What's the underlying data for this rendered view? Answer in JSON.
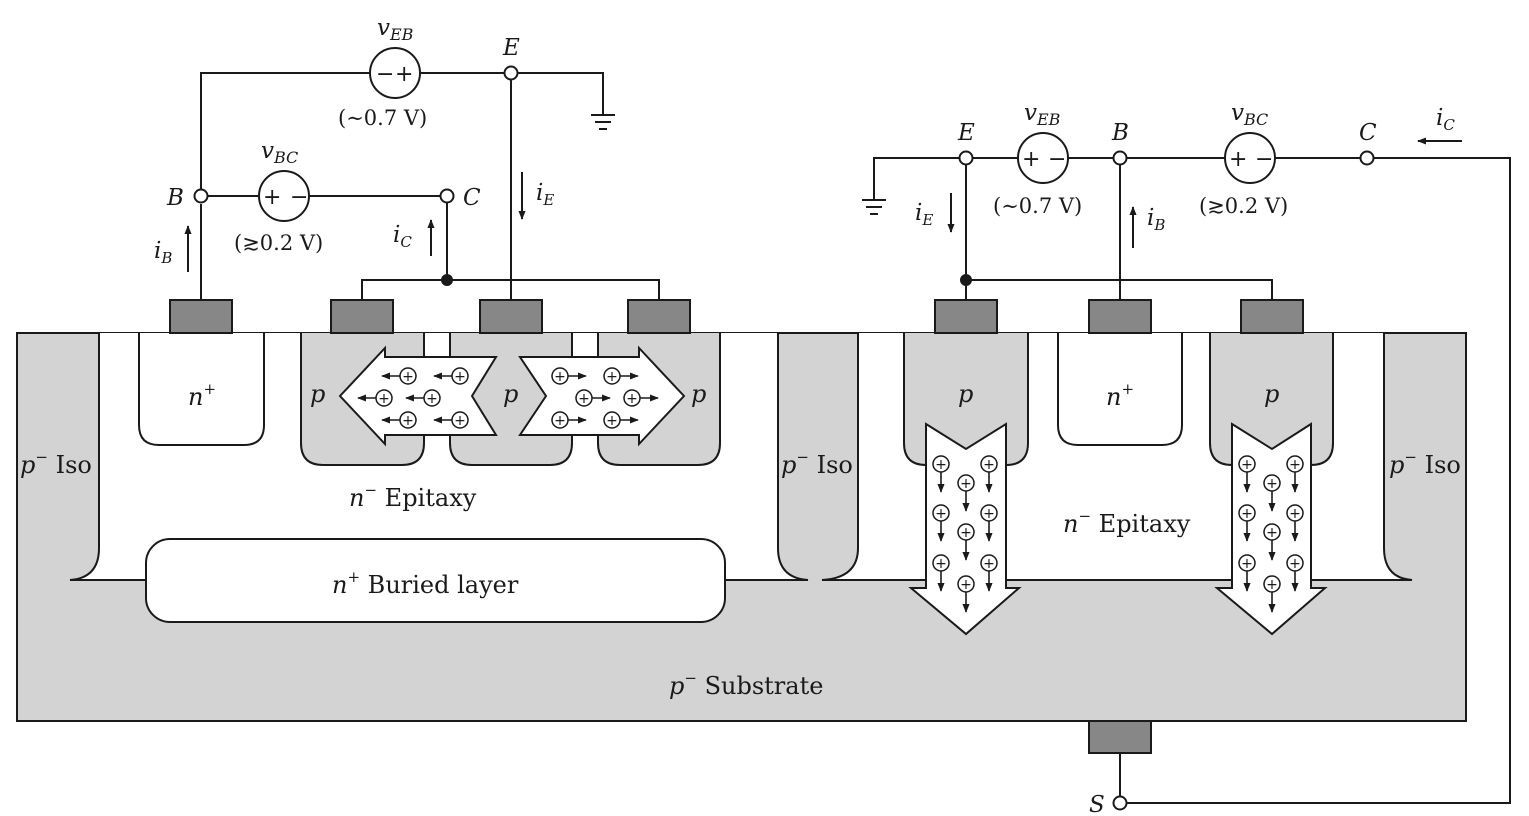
{
  "left_circuit": {
    "source_eb": {
      "name": "v",
      "sub": "EB",
      "pos": "+",
      "neg": "−",
      "value": "(∼0.7 V)"
    },
    "source_bc": {
      "name": "v",
      "sub": "BC",
      "pos": "+",
      "neg": "−",
      "value": "(≳0.2 V)"
    },
    "terminal_e": "E",
    "terminal_b": "B",
    "terminal_c": "C",
    "current_e": {
      "name": "i",
      "sub": "E"
    },
    "current_b": {
      "name": "i",
      "sub": "B"
    },
    "current_c": {
      "name": "i",
      "sub": "C"
    }
  },
  "right_circuit": {
    "source_eb": {
      "name": "v",
      "sub": "EB",
      "pos": "+",
      "neg": "−",
      "value": "(∼0.7 V)"
    },
    "source_bc": {
      "name": "v",
      "sub": "BC",
      "pos": "+",
      "neg": "−",
      "value": "(≳0.2 V)"
    },
    "terminal_e": "E",
    "terminal_b": "B",
    "terminal_c": "C",
    "terminal_s": "S",
    "current_e": {
      "name": "i",
      "sub": "E"
    },
    "current_b": {
      "name": "i",
      "sub": "B"
    },
    "current_c": {
      "name": "i",
      "sub": "C"
    }
  },
  "regions": {
    "n_plus_left": {
      "base": "n",
      "sup": "+"
    },
    "p_left_1": "p",
    "p_left_2": "p",
    "p_left_3": "p",
    "epitaxy_left": {
      "base": "n",
      "sup": "−",
      "text": " Epitaxy"
    },
    "buried_layer": {
      "base": "n",
      "sup": "+",
      "text": " Buried layer"
    },
    "iso_left": {
      "base": "p",
      "sup": "−",
      "text": " Iso"
    },
    "iso_mid": {
      "base": "p",
      "sup": "−",
      "text": " Iso"
    },
    "iso_right": {
      "base": "p",
      "sup": "−",
      "text": " Iso"
    },
    "p_right_1": "p",
    "n_plus_right": {
      "base": "n",
      "sup": "+"
    },
    "p_right_2": "p",
    "epitaxy_right": {
      "base": "n",
      "sup": "−",
      "text": " Epitaxy"
    },
    "substrate": {
      "base": "p",
      "sup": "−",
      "text": " Substrate"
    }
  },
  "colors": {
    "p_region": "#d3d3d3",
    "contact": "#878787",
    "line": "#1a1a1a",
    "background": "#ffffff"
  },
  "hole_symbol": "+"
}
